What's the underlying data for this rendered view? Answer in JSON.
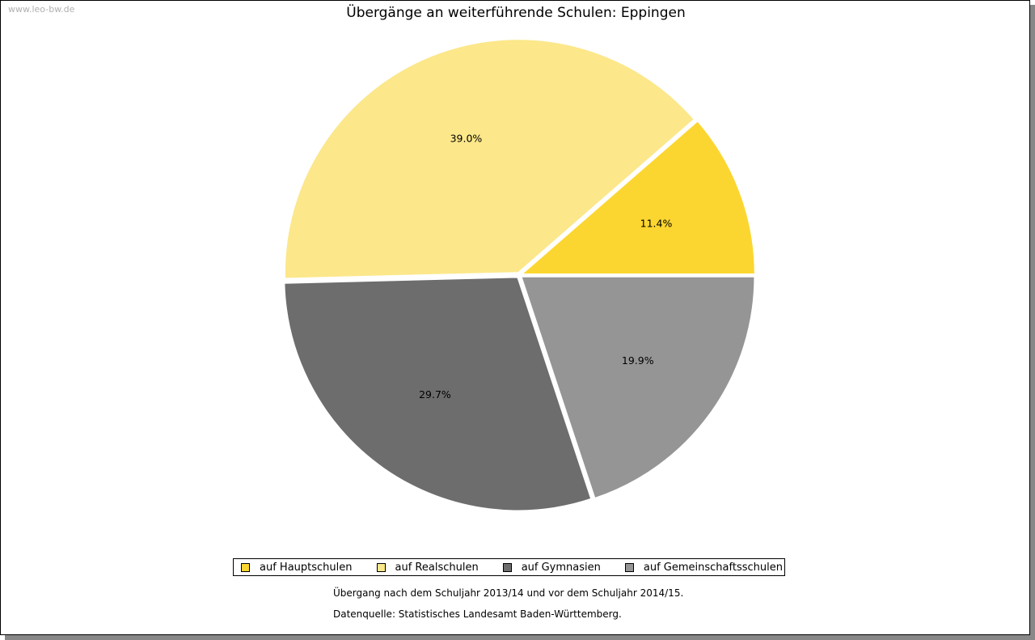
{
  "watermark": "www.leo-bw.de",
  "chart_data": {
    "type": "pie",
    "title": "Übergänge an weiterführende Schulen: Eppingen",
    "slices": [
      {
        "name": "auf Hauptschulen",
        "value": 11.4,
        "label": "11.4%",
        "color": "#fcd630"
      },
      {
        "name": "auf Realschulen",
        "value": 39.0,
        "label": "39.0%",
        "color": "#fce78a"
      },
      {
        "name": "auf Gymnasien",
        "value": 29.7,
        "label": "29.7%",
        "color": "#6d6d6d"
      },
      {
        "name": "auf Gemeinschaftsschulen",
        "value": 19.9,
        "label": "19.9%",
        "color": "#959595"
      }
    ],
    "legend_position": "bottom"
  },
  "notes": {
    "period": "Übergang nach dem Schuljahr 2013/14 und vor dem Schuljahr 2014/15.",
    "source": "Datenquelle: Statistisches Landesamt Baden-Württemberg."
  }
}
